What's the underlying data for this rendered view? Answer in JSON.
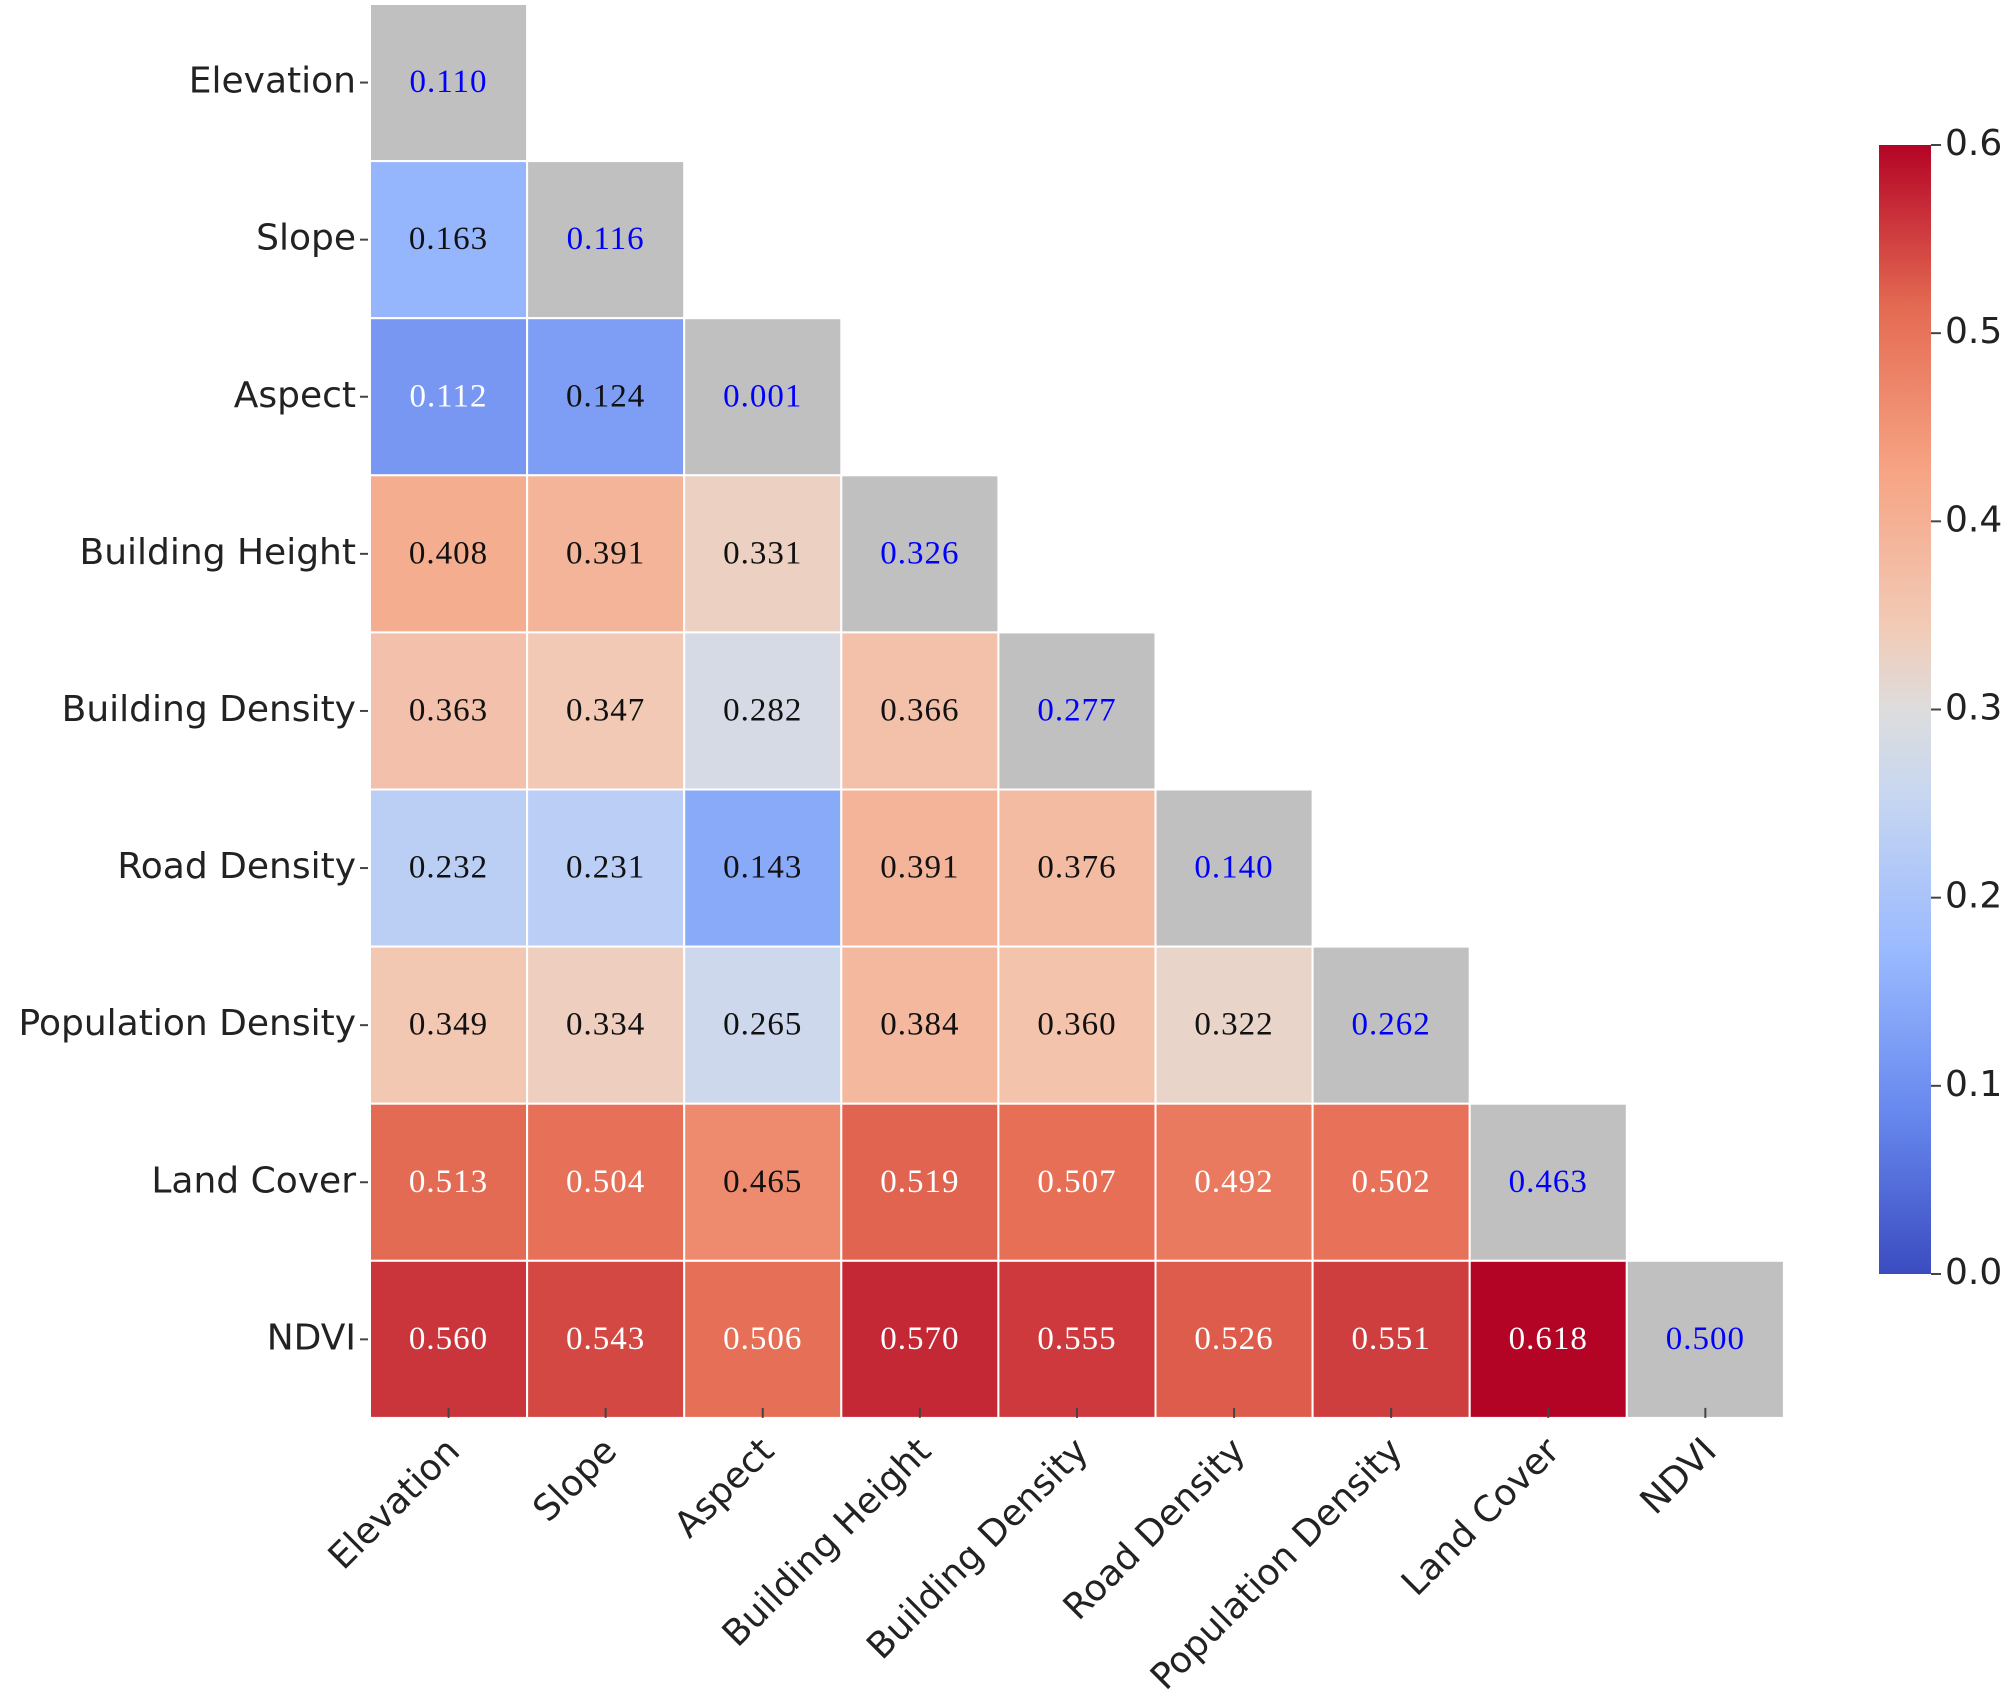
{
  "chart_data": {
    "type": "heatmap",
    "categories": [
      "Elevation",
      "Slope",
      "Aspect",
      "Building Height",
      "Building Density",
      "Road Density",
      "Population Density",
      "Land Cover",
      "NDVI"
    ],
    "values": [
      [
        0.11,
        null,
        null,
        null,
        null,
        null,
        null,
        null,
        null
      ],
      [
        0.163,
        0.116,
        null,
        null,
        null,
        null,
        null,
        null,
        null
      ],
      [
        0.112,
        0.124,
        0.001,
        null,
        null,
        null,
        null,
        null,
        null
      ],
      [
        0.408,
        0.391,
        0.331,
        0.326,
        null,
        null,
        null,
        null,
        null
      ],
      [
        0.363,
        0.347,
        0.282,
        0.366,
        0.277,
        null,
        null,
        null,
        null
      ],
      [
        0.232,
        0.231,
        0.143,
        0.391,
        0.376,
        0.14,
        null,
        null,
        null
      ],
      [
        0.349,
        0.334,
        0.265,
        0.384,
        0.36,
        0.322,
        0.262,
        null,
        null
      ],
      [
        0.513,
        0.504,
        0.465,
        0.519,
        0.507,
        0.492,
        0.502,
        0.463,
        null
      ],
      [
        0.56,
        0.543,
        0.506,
        0.57,
        0.555,
        0.526,
        0.551,
        0.618,
        0.5
      ]
    ],
    "value_labels": [
      [
        "0.110",
        null,
        null,
        null,
        null,
        null,
        null,
        null,
        null
      ],
      [
        "0.163",
        "0.116",
        null,
        null,
        null,
        null,
        null,
        null,
        null
      ],
      [
        "0.112",
        "0.124",
        "0.001",
        null,
        null,
        null,
        null,
        null,
        null
      ],
      [
        "0.408",
        "0.391",
        "0.331",
        "0.326",
        null,
        null,
        null,
        null,
        null
      ],
      [
        "0.363",
        "0.347",
        "0.282",
        "0.366",
        "0.277",
        null,
        null,
        null,
        null
      ],
      [
        "0.232",
        "0.231",
        "0.143",
        "0.391",
        "0.376",
        "0.140",
        null,
        null,
        null
      ],
      [
        "0.349",
        "0.334",
        "0.265",
        "0.384",
        "0.360",
        "0.322",
        "0.262",
        null,
        null
      ],
      [
        "0.513",
        "0.504",
        "0.465",
        "0.519",
        "0.507",
        "0.492",
        "0.502",
        "0.463",
        null
      ],
      [
        "0.560",
        "0.543",
        "0.506",
        "0.570",
        "0.555",
        "0.526",
        "0.551",
        "0.618",
        "0.500"
      ]
    ],
    "colormap": "coolwarm",
    "diagonal_color": "#c0c0c0",
    "diagonal_text_color": "#0000ff",
    "clim": [
      0,
      0.6
    ],
    "cticks": [
      {
        "value": 0,
        "label": "0.0"
      },
      0.1,
      0.2,
      0.3,
      0.4,
      0.5,
      0.6
    ]
  }
}
